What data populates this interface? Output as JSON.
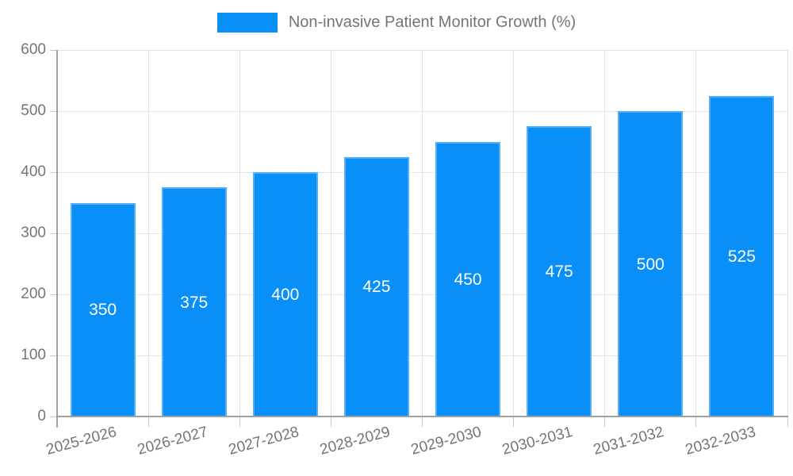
{
  "chart_data": {
    "type": "bar",
    "title": "Non-invasive Patient Monitor Growth (%)",
    "categories": [
      "2025-2026",
      "2026-2027",
      "2027-2028",
      "2028-2029",
      "2029-2030",
      "2030-2031",
      "2031-2032",
      "2032-2033"
    ],
    "series": [
      {
        "name": "Non-invasive Patient Monitor Growth (%)",
        "values": [
          350,
          375,
          400,
          425,
          450,
          475,
          500,
          525
        ]
      }
    ],
    "values": [
      350,
      375,
      400,
      425,
      450,
      475,
      500,
      525
    ],
    "xlabel": "",
    "ylabel": "",
    "ylim": [
      0,
      600
    ],
    "yticks": [
      0,
      100,
      200,
      300,
      400,
      500,
      600
    ],
    "grid": true,
    "legend_position": "top",
    "colors": {
      "bar_fill": "#0890f8",
      "bar_border": "#58adf8",
      "bar_label_text": "#ffffff",
      "grid_line": "#e3e3e3",
      "tick_mark": "#c6c6c6",
      "axis_line": "#a0a0a0",
      "tick_text": "#757575",
      "legend_text": "#757575"
    }
  }
}
